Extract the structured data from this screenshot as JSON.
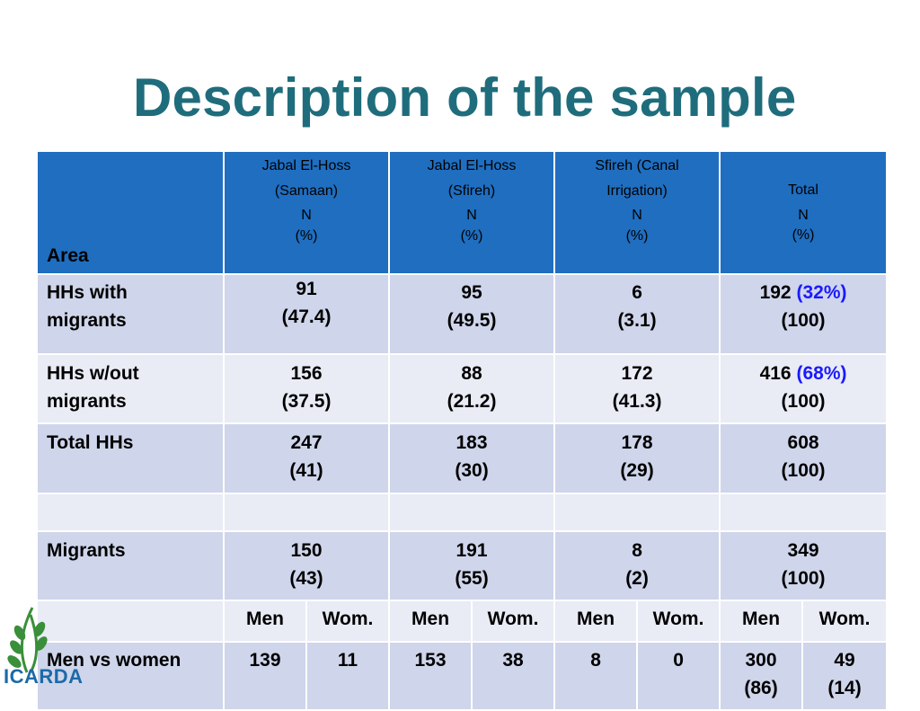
{
  "title": "Description of the sample",
  "header": {
    "area": "Area",
    "columns": [
      {
        "l1": "Jabal El-Hoss",
        "l2": "(Samaan)",
        "l3": "N",
        "l4": "(%)"
      },
      {
        "l1": "Jabal El-Hoss",
        "l2": "(Sfireh)",
        "l3": "N",
        "l4": "(%)"
      },
      {
        "l1": "Sfireh (Canal",
        "l2": "Irrigation)",
        "l3": "N",
        "l4": "(%)"
      },
      {
        "l1": "",
        "l2": "Total",
        "l3": "N",
        "l4": "(%)"
      }
    ]
  },
  "rows": {
    "with_migrants": {
      "label1": "HHs with",
      "label2": "migrants",
      "cells": [
        {
          "n": "91",
          "p": "(47.4)"
        },
        {
          "n": "95",
          "p": "(49.5)"
        },
        {
          "n": "6",
          "p": "(3.1)"
        },
        {
          "n": "192",
          "share": "(32%)",
          "p": "(100)"
        }
      ]
    },
    "without_migrants": {
      "label1": "HHs w/out",
      "label2": "migrants",
      "cells": [
        {
          "n": "156",
          "p": "(37.5)"
        },
        {
          "n": "88",
          "p": "(21.2)"
        },
        {
          "n": "172",
          "p": "(41.3)"
        },
        {
          "n": "416",
          "share": "(68%)",
          "p": "(100)"
        }
      ]
    },
    "total_hhs": {
      "label": "Total HHs",
      "cells": [
        {
          "n": "247",
          "p": "(41)"
        },
        {
          "n": "183",
          "p": "(30)"
        },
        {
          "n": "178",
          "p": "(29)"
        },
        {
          "n": "608",
          "p": "(100)"
        }
      ]
    },
    "migrants": {
      "label": "Migrants",
      "cells": [
        {
          "n": "150",
          "p": "(43)"
        },
        {
          "n": "191",
          "p": "(55)"
        },
        {
          "n": "8",
          "p": "(2)"
        },
        {
          "n": "349",
          "p": "(100)"
        }
      ]
    },
    "gender_header": {
      "men": "Men",
      "women": "Wom."
    },
    "men_vs_women": {
      "label": "Men vs women",
      "values": [
        "139",
        "11",
        "153",
        "38",
        "8",
        "0",
        "300",
        "49"
      ],
      "total_pct": [
        "(86)",
        "(14)"
      ]
    }
  },
  "logo": {
    "text": "ICARDA",
    "icon": "wheat-globe-icon"
  },
  "colors": {
    "title": "#1f6d7c",
    "header_bg": "#1f6ec0",
    "row_dark": "#cfd5ea",
    "row_light": "#e9ebf5",
    "highlight": "#1a1aff"
  }
}
